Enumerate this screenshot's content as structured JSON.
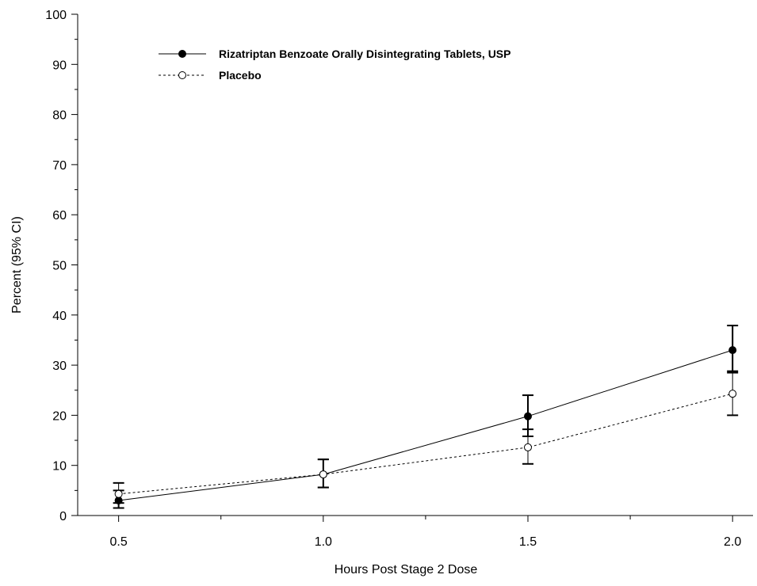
{
  "chart_data": {
    "type": "line",
    "xlabel": "Hours Post Stage 2 Dose",
    "ylabel": "Percent (95% CI)",
    "x": [
      0.5,
      1.0,
      1.5,
      2.0
    ],
    "x_tick_labels": [
      "0.5",
      "1.0",
      "1.5",
      "2.0"
    ],
    "xlim": [
      0.4,
      2.05
    ],
    "ylim": [
      0,
      100
    ],
    "y_ticks": [
      0,
      10,
      20,
      30,
      40,
      50,
      60,
      70,
      80,
      90,
      100
    ],
    "grid": false,
    "legend_position": "top-left",
    "series": [
      {
        "name": "Rizatriptan Benzoate Orally Disintegrating Tablets, USP",
        "style": "solid",
        "marker": "filled-circle",
        "color": "#000000",
        "values": [
          3.0,
          8.2,
          19.8,
          33.0
        ],
        "ci_lower": [
          1.5,
          5.6,
          15.8,
          28.5
        ],
        "ci_upper": [
          5.0,
          11.2,
          24.0,
          37.9
        ]
      },
      {
        "name": "Placebo",
        "style": "dashed",
        "marker": "open-circle",
        "color": "#000000",
        "values": [
          4.3,
          8.2,
          13.6,
          24.3
        ],
        "ci_lower": [
          2.5,
          5.6,
          10.3,
          20.0
        ],
        "ci_upper": [
          6.5,
          11.2,
          17.2,
          28.8
        ]
      }
    ]
  }
}
